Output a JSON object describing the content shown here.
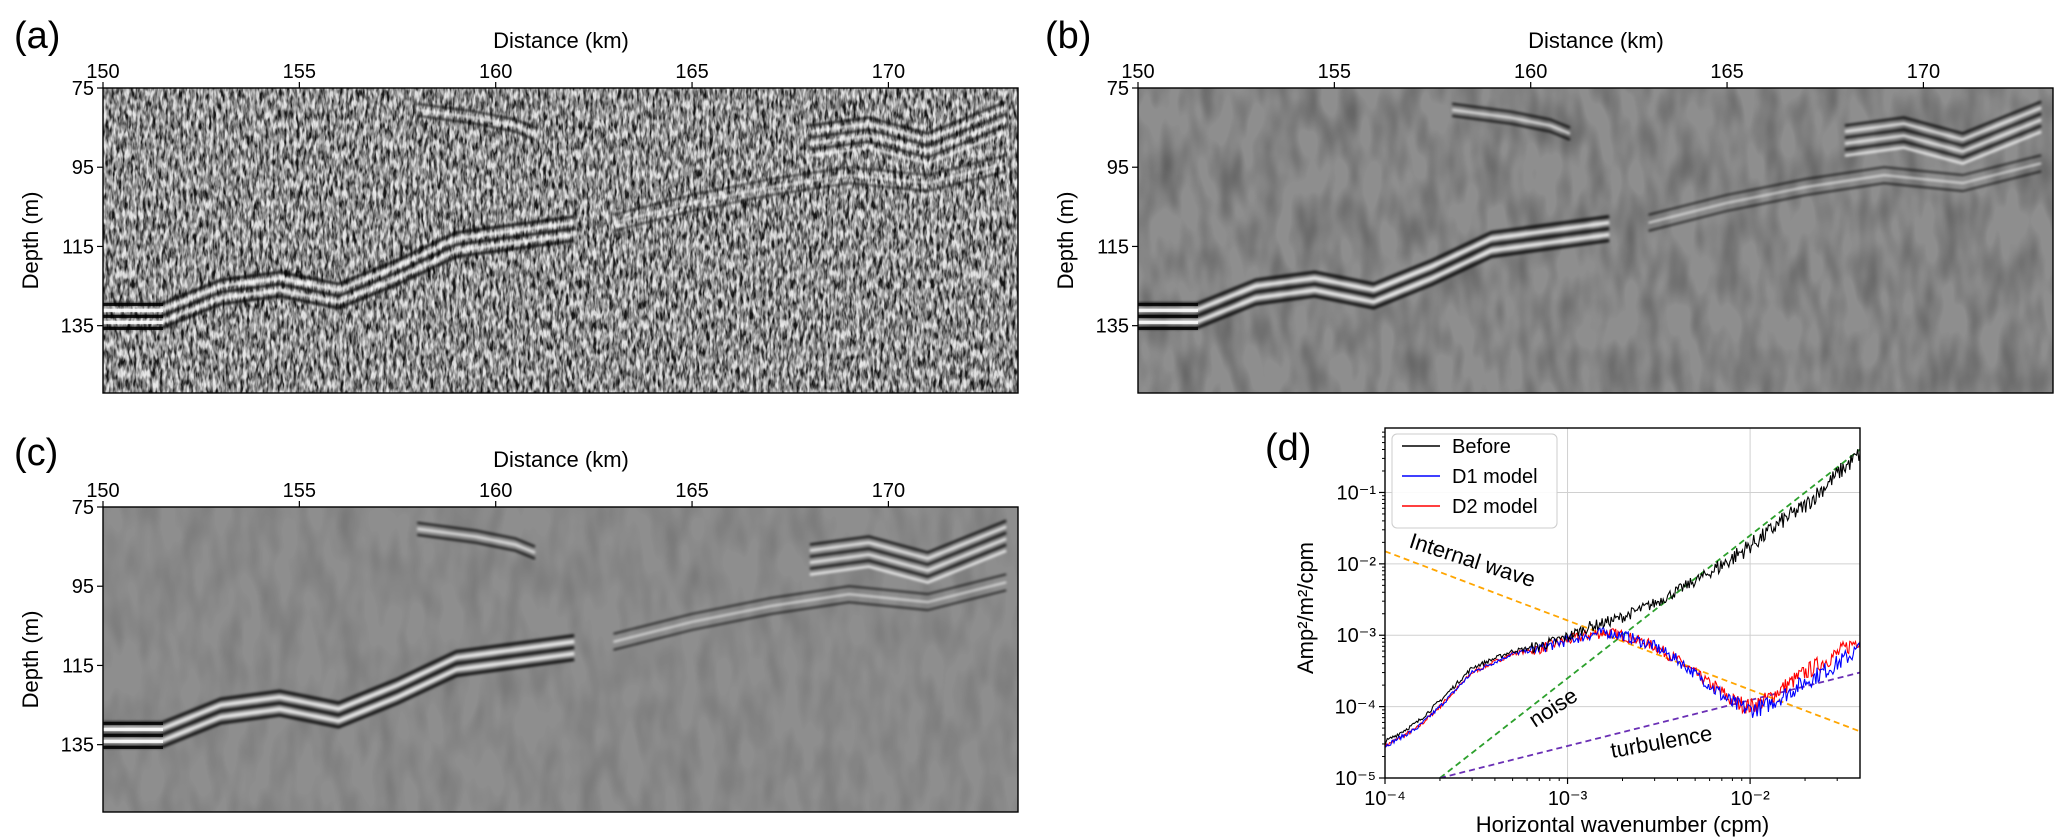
{
  "panels": [
    {
      "letter": "(a)",
      "xlabel": "Distance (km)",
      "ylabel": "Depth (m)",
      "xticks": [
        "150",
        "155",
        "160",
        "165",
        "170"
      ],
      "yticks": [
        "75",
        "95",
        "115",
        "135"
      ],
      "noise": 0.85
    },
    {
      "letter": "(b)",
      "xlabel": "Distance (km)",
      "ylabel": "Depth (m)",
      "xticks": [
        "150",
        "155",
        "160",
        "165",
        "170"
      ],
      "yticks": [
        "75",
        "95",
        "115",
        "135"
      ],
      "noise": 0.12
    },
    {
      "letter": "(c)",
      "xlabel": "Distance (km)",
      "ylabel": "Depth (m)",
      "xticks": [
        "150",
        "155",
        "160",
        "165",
        "170"
      ],
      "yticks": [
        "75",
        "95",
        "115",
        "135"
      ],
      "noise": 0.06
    }
  ],
  "chart_data": [
    {
      "type": "heatmap",
      "panel": "(a)",
      "title": "",
      "xlabel": "Distance (km)",
      "ylabel": "Depth (m)",
      "xlim": [
        150,
        173.3
      ],
      "ylim": [
        152,
        75
      ],
      "xticks": [
        150,
        155,
        160,
        165,
        170
      ],
      "yticks": [
        75,
        95,
        115,
        135
      ]
    },
    {
      "type": "heatmap",
      "panel": "(b)",
      "title": "",
      "xlabel": "Distance (km)",
      "ylabel": "Depth (m)",
      "xlim": [
        150,
        173.3
      ],
      "ylim": [
        152,
        75
      ],
      "xticks": [
        150,
        155,
        160,
        165,
        170
      ],
      "yticks": [
        75,
        95,
        115,
        135
      ]
    },
    {
      "type": "heatmap",
      "panel": "(c)",
      "title": "",
      "xlabel": "Distance (km)",
      "ylabel": "Depth (m)",
      "xlim": [
        150,
        173.3
      ],
      "ylim": [
        152,
        75
      ],
      "xticks": [
        150,
        155,
        160,
        165,
        170
      ],
      "yticks": [
        75,
        95,
        115,
        135
      ]
    },
    {
      "type": "line",
      "panel": "(d)",
      "title": "",
      "xlabel": "Horizontal wavenumber (cpm)",
      "ylabel": "Amp²/m²/cpm",
      "xscale": "log",
      "yscale": "log",
      "xlim": [
        0.0001,
        0.04
      ],
      "ylim": [
        1e-05,
        0.8
      ],
      "xtick_labels": [
        "10⁻⁴",
        "10⁻³",
        "10⁻²"
      ],
      "xtick_values": [
        0.0001,
        0.001,
        0.01
      ],
      "ytick_labels": [
        "10⁻⁵",
        "10⁻⁴",
        "10⁻³",
        "10⁻²",
        "10⁻¹"
      ],
      "ytick_values": [
        1e-05,
        0.0001,
        0.001,
        0.01,
        0.1
      ],
      "grid": true,
      "legend": "top-left",
      "series": [
        {
          "name": "Before",
          "color": "#000000",
          "x": [
            0.0001,
            0.00015,
            0.0002,
            0.0003,
            0.0005,
            0.0007,
            0.001,
            0.0013,
            0.0016,
            0.002,
            0.003,
            0.004,
            0.006,
            0.008,
            0.01,
            0.012,
            0.015,
            0.02,
            0.03,
            0.04
          ],
          "y": [
            3.2e-05,
            6e-05,
            0.00012,
            0.00035,
            0.0006,
            0.0007,
            0.00095,
            0.0013,
            0.0015,
            0.0018,
            0.0028,
            0.0042,
            0.0075,
            0.012,
            0.018,
            0.025,
            0.04,
            0.065,
            0.18,
            0.35
          ]
        },
        {
          "name": "D1 model",
          "color": "#0000ff",
          "x": [
            0.0001,
            0.00015,
            0.0002,
            0.0003,
            0.0005,
            0.0007,
            0.001,
            0.0013,
            0.0016,
            0.002,
            0.003,
            0.004,
            0.006,
            0.008,
            0.01,
            0.012,
            0.015,
            0.02,
            0.03,
            0.04
          ],
          "y": [
            2.8e-05,
            5e-05,
            0.0001,
            0.0003,
            0.00055,
            0.00065,
            0.00085,
            0.001,
            0.0011,
            0.001,
            0.0007,
            0.00045,
            0.0002,
            0.00011,
            9e-05,
            0.0001,
            0.00014,
            0.00022,
            0.0004,
            0.00065
          ]
        },
        {
          "name": "D2 model",
          "color": "#ff0000",
          "x": [
            0.0001,
            0.00015,
            0.0002,
            0.0003,
            0.0005,
            0.0007,
            0.001,
            0.0013,
            0.0016,
            0.002,
            0.003,
            0.004,
            0.006,
            0.008,
            0.01,
            0.012,
            0.015,
            0.02,
            0.03,
            0.04
          ],
          "y": [
            2.8e-05,
            5e-05,
            0.0001,
            0.0003,
            0.00055,
            0.00065,
            0.00085,
            0.001,
            0.0011,
            0.001,
            0.0007,
            0.00045,
            0.00021,
            0.00012,
            0.0001,
            0.00012,
            0.00018,
            0.0003,
            0.00055,
            0.0009
          ]
        }
      ],
      "reference_lines": [
        {
          "label": "Internal wave",
          "color": "#ffa500",
          "x": [
            0.0001,
            0.04
          ],
          "y": [
            0.015,
            4.5e-05
          ]
        },
        {
          "label": "noise",
          "color": "#2ca02c",
          "x": [
            0.0002,
            0.04
          ],
          "y": [
            1e-05,
            0.4
          ]
        },
        {
          "label": "turbulence",
          "color": "#6a2fb5",
          "x": [
            0.0002,
            0.04
          ],
          "y": [
            1e-05,
            0.0003
          ]
        }
      ],
      "letter": "(d)"
    }
  ]
}
